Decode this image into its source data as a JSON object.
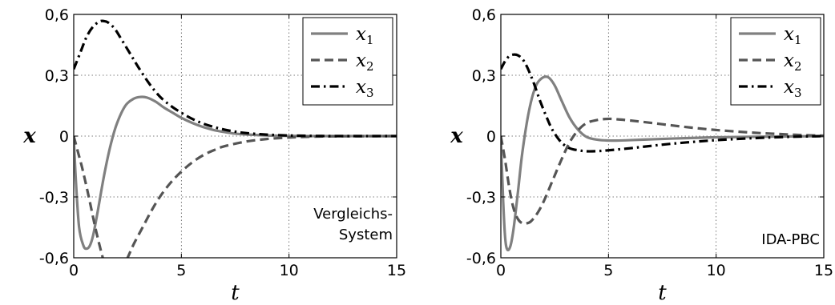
{
  "chart_data": [
    {
      "type": "line",
      "xlabel": "t",
      "ylabel": "x",
      "xlim": [
        0,
        15
      ],
      "ylim": [
        -0.6,
        0.6
      ],
      "xticks": [
        0,
        5,
        10,
        15
      ],
      "xtick_labels": [
        "0",
        "5",
        "10",
        "15"
      ],
      "yticks": [
        -0.6,
        -0.3,
        0,
        0.3,
        0.6
      ],
      "ytick_labels": [
        "-0,6",
        "-0,3",
        "0",
        "0,3",
        "0,6"
      ],
      "grid": true,
      "legend_position": "top-right",
      "annotation": [
        "Vergleichs-",
        "System"
      ],
      "series": [
        {
          "name": "x",
          "sub": "1",
          "color": "#808080",
          "style": "solid",
          "x": [
            0,
            0.1,
            0.25,
            0.45,
            0.6,
            0.75,
            0.9,
            1.1,
            1.4,
            1.7,
            2.0,
            2.4,
            2.8,
            3.1,
            3.4,
            3.8,
            4.2,
            4.6,
            5.0,
            5.5,
            6.0,
            6.5,
            7.0,
            7.5,
            8.0,
            9.0,
            10.0,
            11.0,
            12.0,
            13.0,
            15.0
          ],
          "y": [
            0,
            -0.22,
            -0.45,
            -0.54,
            -0.555,
            -0.54,
            -0.49,
            -0.38,
            -0.2,
            -0.05,
            0.06,
            0.15,
            0.185,
            0.193,
            0.19,
            0.17,
            0.14,
            0.115,
            0.09,
            0.065,
            0.045,
            0.03,
            0.02,
            0.012,
            0.008,
            0.003,
            0.001,
            0,
            0,
            0,
            0
          ]
        },
        {
          "name": "x",
          "sub": "2",
          "color": "#555555",
          "style": "dashed",
          "x": [
            0,
            0.2,
            0.4,
            0.7,
            1.0,
            1.3,
            1.6,
            1.9,
            2.2,
            2.5,
            2.8,
            3.2,
            3.6,
            4.0,
            4.5,
            5.0,
            5.5,
            6.0,
            6.5,
            7.0,
            8.0,
            9.0,
            10.0,
            11.0,
            12.0,
            15.0
          ],
          "y": [
            0,
            -0.08,
            -0.16,
            -0.3,
            -0.45,
            -0.58,
            -0.69,
            -0.71,
            -0.66,
            -0.6,
            -0.53,
            -0.45,
            -0.37,
            -0.3,
            -0.23,
            -0.175,
            -0.13,
            -0.095,
            -0.07,
            -0.05,
            -0.027,
            -0.014,
            -0.007,
            -0.003,
            -0.001,
            0
          ]
        },
        {
          "name": "x",
          "sub": "3",
          "color": "#000000",
          "style": "dashdot",
          "x": [
            0,
            0.3,
            0.6,
            0.9,
            1.2,
            1.4,
            1.6,
            1.9,
            2.2,
            2.6,
            3.0,
            3.5,
            4.0,
            4.5,
            5.0,
            5.5,
            6.0,
            6.5,
            7.0,
            7.5,
            8.0,
            9.0,
            10.0,
            11.0,
            12.0,
            13.0,
            15.0
          ],
          "y": [
            0.33,
            0.41,
            0.49,
            0.54,
            0.565,
            0.567,
            0.56,
            0.53,
            0.48,
            0.41,
            0.34,
            0.26,
            0.195,
            0.15,
            0.115,
            0.085,
            0.062,
            0.045,
            0.032,
            0.022,
            0.015,
            0.007,
            0.003,
            0.001,
            0,
            0,
            0
          ]
        }
      ]
    },
    {
      "type": "line",
      "xlabel": "t",
      "ylabel": "x",
      "xlim": [
        0,
        15
      ],
      "ylim": [
        -0.6,
        0.6
      ],
      "xticks": [
        0,
        5,
        10,
        15
      ],
      "xtick_labels": [
        "0",
        "5",
        "10",
        "15"
      ],
      "yticks": [
        -0.6,
        -0.3,
        0,
        0.3,
        0.6
      ],
      "ytick_labels": [
        "-0,6",
        "-0,3",
        "0",
        "0,3",
        "0,6"
      ],
      "grid": true,
      "legend_position": "top-right",
      "annotation": [
        "IDA-PBC"
      ],
      "series": [
        {
          "name": "x",
          "sub": "1",
          "color": "#808080",
          "style": "solid",
          "x": [
            0,
            0.1,
            0.2,
            0.3,
            0.45,
            0.6,
            0.8,
            1.0,
            1.3,
            1.6,
            1.9,
            2.2,
            2.5,
            2.8,
            3.2,
            3.6,
            4.0,
            4.5,
            5.0,
            5.5,
            6.0,
            7.0,
            8.0,
            9.0,
            10.0,
            12.0,
            15.0
          ],
          "y": [
            0,
            -0.3,
            -0.5,
            -0.56,
            -0.54,
            -0.45,
            -0.27,
            -0.08,
            0.12,
            0.24,
            0.285,
            0.29,
            0.25,
            0.18,
            0.09,
            0.03,
            -0.005,
            -0.018,
            -0.022,
            -0.022,
            -0.02,
            -0.016,
            -0.012,
            -0.009,
            -0.006,
            -0.003,
            0
          ]
        },
        {
          "name": "x",
          "sub": "2",
          "color": "#555555",
          "style": "dashed",
          "x": [
            0,
            0.2,
            0.4,
            0.6,
            0.8,
            1.0,
            1.2,
            1.4,
            1.7,
            2.0,
            2.4,
            2.8,
            3.2,
            3.6,
            4.0,
            4.5,
            5.0,
            5.5,
            6.0,
            7.0,
            8.0,
            9.0,
            10.0,
            11.0,
            12.0,
            13.0,
            14.0,
            15.0
          ],
          "y": [
            0,
            -0.12,
            -0.26,
            -0.36,
            -0.41,
            -0.43,
            -0.43,
            -0.42,
            -0.38,
            -0.32,
            -0.22,
            -0.12,
            -0.03,
            0.03,
            0.065,
            0.08,
            0.085,
            0.082,
            0.077,
            0.065,
            0.052,
            0.04,
            0.03,
            0.022,
            0.015,
            0.01,
            0.005,
            0.002
          ]
        },
        {
          "name": "x",
          "sub": "3",
          "color": "#000000",
          "style": "dashdot",
          "x": [
            0,
            0.2,
            0.4,
            0.6,
            0.8,
            1.0,
            1.2,
            1.5,
            1.8,
            2.1,
            2.4,
            2.8,
            3.2,
            3.6,
            4.0,
            4.5,
            5.0,
            6.0,
            7.0,
            8.0,
            9.0,
            10.0,
            11.0,
            12.0,
            13.0,
            14.0,
            15.0
          ],
          "y": [
            0.33,
            0.37,
            0.395,
            0.402,
            0.398,
            0.38,
            0.345,
            0.27,
            0.18,
            0.1,
            0.03,
            -0.03,
            -0.06,
            -0.07,
            -0.075,
            -0.074,
            -0.07,
            -0.06,
            -0.048,
            -0.037,
            -0.028,
            -0.02,
            -0.014,
            -0.009,
            -0.005,
            -0.002,
            0
          ]
        }
      ]
    }
  ]
}
